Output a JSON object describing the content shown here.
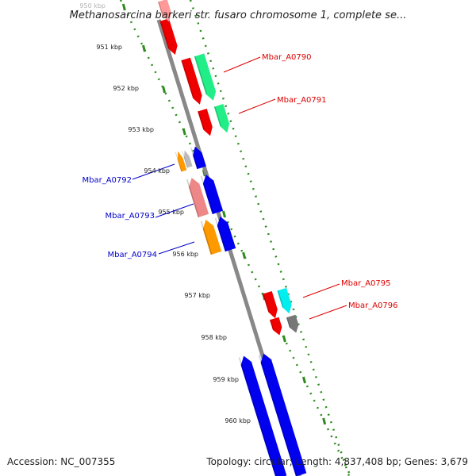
{
  "title": "Methanosarcina barkeri str. fusaro chromosome 1, complete se...",
  "footer": {
    "accession": "Accession: NC_007355",
    "topology": "Topology: circular; Length: 4,837,408 bp; Genes: 3,679"
  },
  "ticks": [
    "950 kbp",
    "951 kbp",
    "952 kbp",
    "953 kbp",
    "954 kbp",
    "955 kbp",
    "956 kbp",
    "957 kbp",
    "958 kbp",
    "959 kbp",
    "960 kbp"
  ],
  "labels": {
    "forward": [
      "Mbar_A0790",
      "Mbar_A0791",
      "Mbar_A0795",
      "Mbar_A0796"
    ],
    "reverse": [
      "Mbar_A0792",
      "Mbar_A0793",
      "Mbar_A0794"
    ]
  },
  "colors": {
    "backbone": "#888888",
    "tick_dots": "#2e8b1e",
    "forward_label": "#dd0000",
    "reverse_label": "#0000cc",
    "red": "#ee0000",
    "light_red": "#ff9999",
    "pink": "#ee8888",
    "green": "#22ee88",
    "cyan": "#00eeee",
    "gray": "#777777",
    "silver": "#bbbbbb",
    "orange": "#ff9900",
    "blue": "#0000ee"
  }
}
